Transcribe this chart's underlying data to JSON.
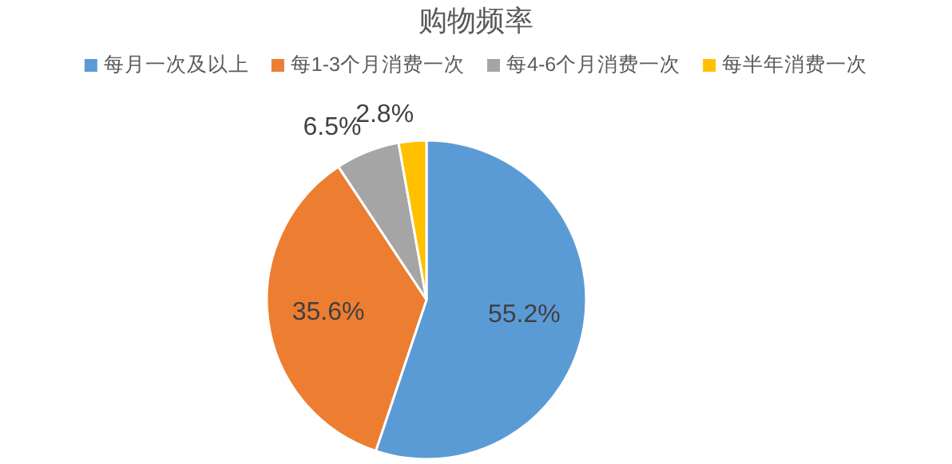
{
  "chart_data": {
    "type": "pie",
    "title": "购物频率",
    "categories": [
      "每月一次及以上",
      "每1-3个月消费一次",
      "每4-6个月消费一次",
      "每半年消费一次"
    ],
    "values": [
      55.2,
      35.6,
      6.5,
      2.8
    ],
    "colors": [
      "#5b9bd5",
      "#ed7d31",
      "#a5a5a5",
      "#ffc000"
    ],
    "value_labels": [
      "55.2%",
      "35.6%",
      "6.5%",
      "2.8%"
    ],
    "legend": "top"
  }
}
